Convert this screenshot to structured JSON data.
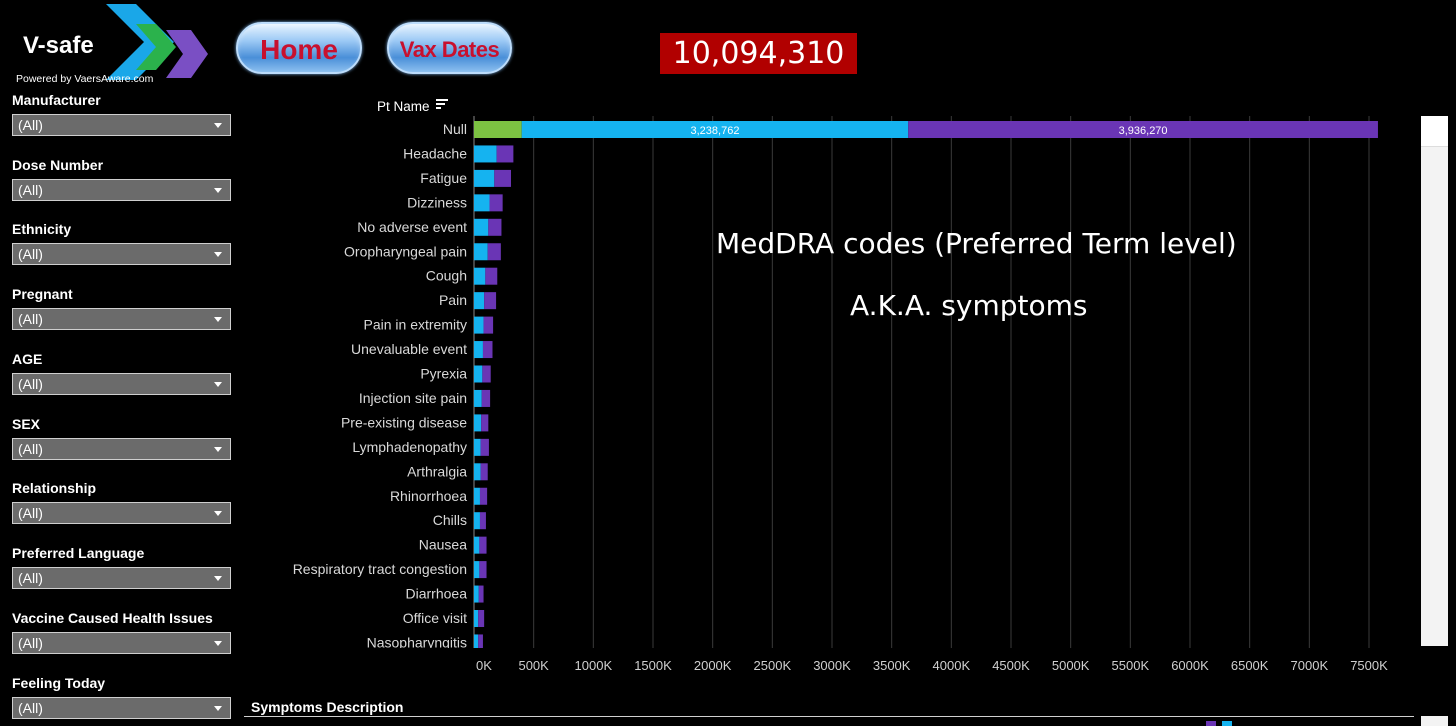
{
  "logo": {
    "title": "V-safe",
    "subtitle": "Powered by VaersAware.com"
  },
  "nav": {
    "home_label": "Home",
    "vax_dates_label": "Vax Dates"
  },
  "total": "10,094,310",
  "filters": [
    {
      "label": "Manufacturer",
      "value": "(All)"
    },
    {
      "label": "Dose Number",
      "value": "(All)"
    },
    {
      "label": "Ethnicity",
      "value": "(All)"
    },
    {
      "label": "Pregnant",
      "value": "(All)"
    },
    {
      "label": "AGE",
      "value": "(All)"
    },
    {
      "label": "SEX",
      "value": "(All)"
    },
    {
      "label": "Relationship",
      "value": "(All)"
    },
    {
      "label": "Preferred Language",
      "value": "(All)"
    },
    {
      "label": "Vaccine Caused Health Issues",
      "value": "(All)"
    },
    {
      "label": "Feeling Today",
      "value": "(All)"
    }
  ],
  "column_header": "Pt Name",
  "annotation": {
    "line1": "MedDRA codes (Preferred Term level)",
    "line2": "A.K.A. symptoms"
  },
  "section_title": "Symptoms Description",
  "colors": {
    "green": "#7cc242",
    "blue": "#15b3f0",
    "purple": "#6a35b5",
    "total_bg": "#b10000",
    "button_text": "#c8102e"
  },
  "chart_data": {
    "type": "bar",
    "orientation": "horizontal",
    "stacked": true,
    "categories": [
      "Null",
      "Headache",
      "Fatigue",
      "Dizziness",
      "No adverse event",
      "Oropharyngeal pain",
      "Cough",
      "Pain",
      "Pain in extremity",
      "Unevaluable event",
      "Pyrexia",
      "Injection site pain",
      "Pre-existing disease",
      "Lymphadenopathy",
      "Arthralgia",
      "Rhinorrhoea",
      "Chills",
      "Nausea",
      "Respiratory tract congestion",
      "Diarrhoea",
      "Office visit",
      "Nasopharyngitis"
    ],
    "series": [
      {
        "color": "#7cc242",
        "values": [
          400000,
          0,
          0,
          0,
          0,
          0,
          0,
          0,
          0,
          0,
          0,
          0,
          0,
          0,
          0,
          0,
          0,
          0,
          0,
          0,
          0,
          0
        ]
      },
      {
        "color": "#15b3f0",
        "values": [
          3238762,
          190000,
          170000,
          130000,
          120000,
          115000,
          95000,
          85000,
          80000,
          75000,
          70000,
          65000,
          60000,
          55000,
          55000,
          50000,
          50000,
          45000,
          45000,
          40000,
          35000,
          35000
        ],
        "data_labels": [
          "3,238,762"
        ]
      },
      {
        "color": "#6a35b5",
        "values": [
          3936270,
          140000,
          140000,
          110000,
          110000,
          110000,
          100000,
          100000,
          80000,
          80000,
          70000,
          70000,
          60000,
          70000,
          60000,
          60000,
          50000,
          60000,
          60000,
          40000,
          50000,
          40000
        ],
        "data_labels": [
          "3,936,270"
        ]
      }
    ],
    "xticks": [
      "0K",
      "500K",
      "1000K",
      "1500K",
      "2000K",
      "2500K",
      "3000K",
      "3500K",
      "4000K",
      "4500K",
      "5000K",
      "5500K",
      "6000K",
      "6500K",
      "7000K",
      "7500K"
    ],
    "xlim": [
      0,
      7500000
    ],
    "grid": true
  }
}
